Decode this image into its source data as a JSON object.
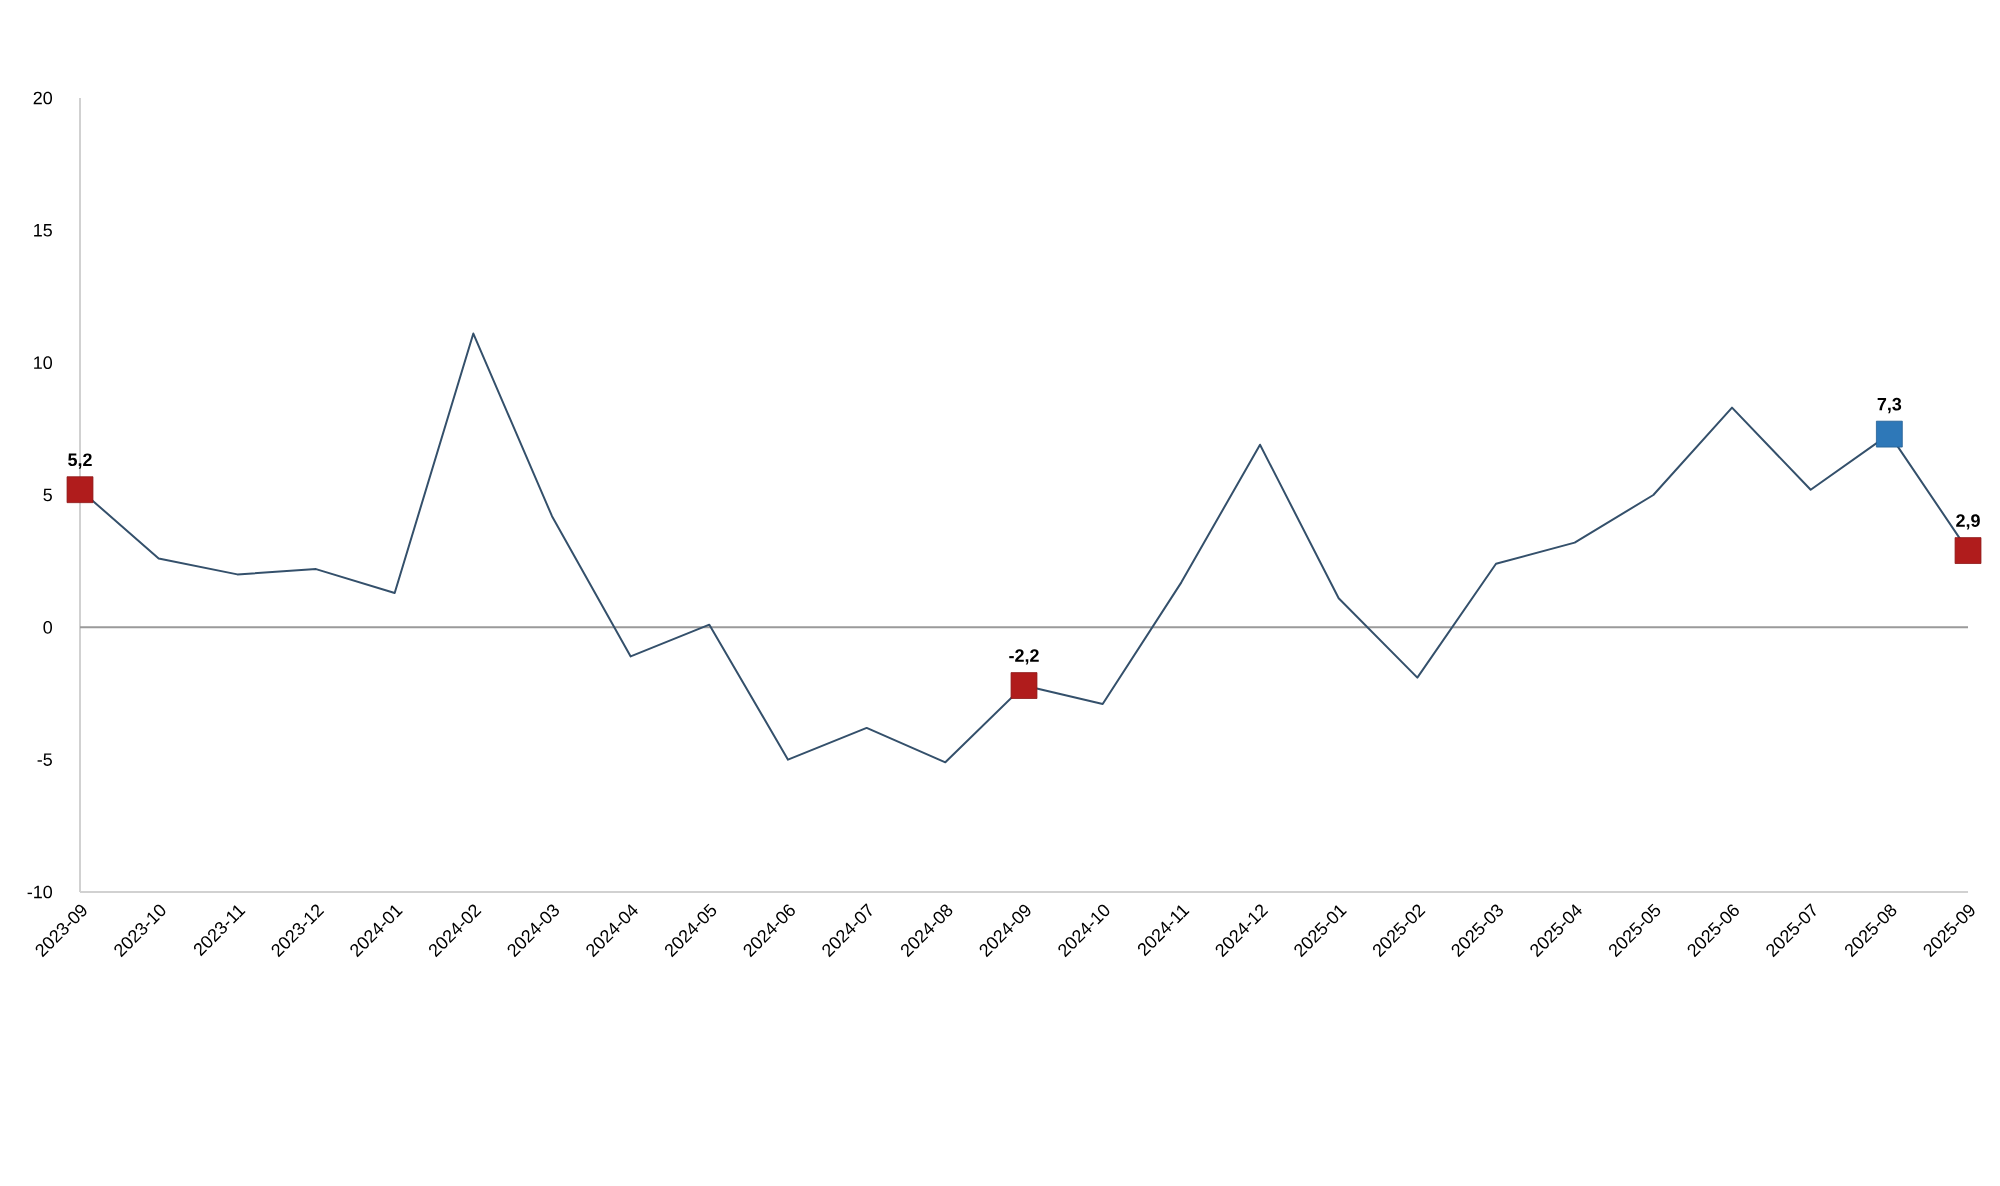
{
  "chart_data": {
    "type": "line",
    "categories": [
      "2023-09",
      "2023-10",
      "2023-11",
      "2023-12",
      "2024-01",
      "2024-02",
      "2024-03",
      "2024-04",
      "2024-05",
      "2024-06",
      "2024-07",
      "2024-08",
      "2024-09",
      "2024-10",
      "2024-11",
      "2024-12",
      "2025-01",
      "2025-02",
      "2025-03",
      "2025-04",
      "2025-05",
      "2025-06",
      "2025-07",
      "2025-08",
      "2025-09"
    ],
    "series": [
      {
        "color": "#34506b",
        "values": [
          5.2,
          2.6,
          2.0,
          2.2,
          1.3,
          11.1,
          4.2,
          -1.1,
          0.1,
          -5.0,
          -3.8,
          -5.1,
          -2.2,
          -2.9,
          1.7,
          6.9,
          1.1,
          -1.9,
          2.4,
          3.2,
          5.0,
          8.3,
          5.2,
          7.3,
          2.9
        ]
      },
      {
        "type": "scatter",
        "values": [
          5.2,
          null,
          null,
          null,
          null,
          null,
          null,
          null,
          null,
          null,
          null,
          null,
          -2.2,
          null,
          null,
          null,
          null,
          null,
          null,
          null,
          null,
          null,
          null,
          7.3,
          2.9
        ],
        "colors": [
          "#b01c1c",
          null,
          null,
          null,
          null,
          null,
          null,
          null,
          null,
          null,
          null,
          null,
          "#b01c1c",
          null,
          null,
          null,
          null,
          null,
          null,
          null,
          null,
          null,
          null,
          "#2e78b8",
          "#b01c1c"
        ],
        "value_labels": [
          "5,2",
          null,
          null,
          null,
          null,
          null,
          null,
          null,
          null,
          null,
          null,
          null,
          "-2,2",
          null,
          null,
          null,
          null,
          null,
          null,
          null,
          null,
          null,
          null,
          "7,3",
          "2,9"
        ],
        "marker": "square"
      }
    ],
    "ylim": [
      -10,
      20
    ],
    "yticks": [
      -10,
      -5,
      0,
      5,
      10,
      15,
      20
    ],
    "ref_lines": [
      {
        "axis": "y",
        "value": 0,
        "color": "#9a9a9a"
      }
    ],
    "grid": false,
    "marker": "none",
    "line_style": "solid"
  }
}
